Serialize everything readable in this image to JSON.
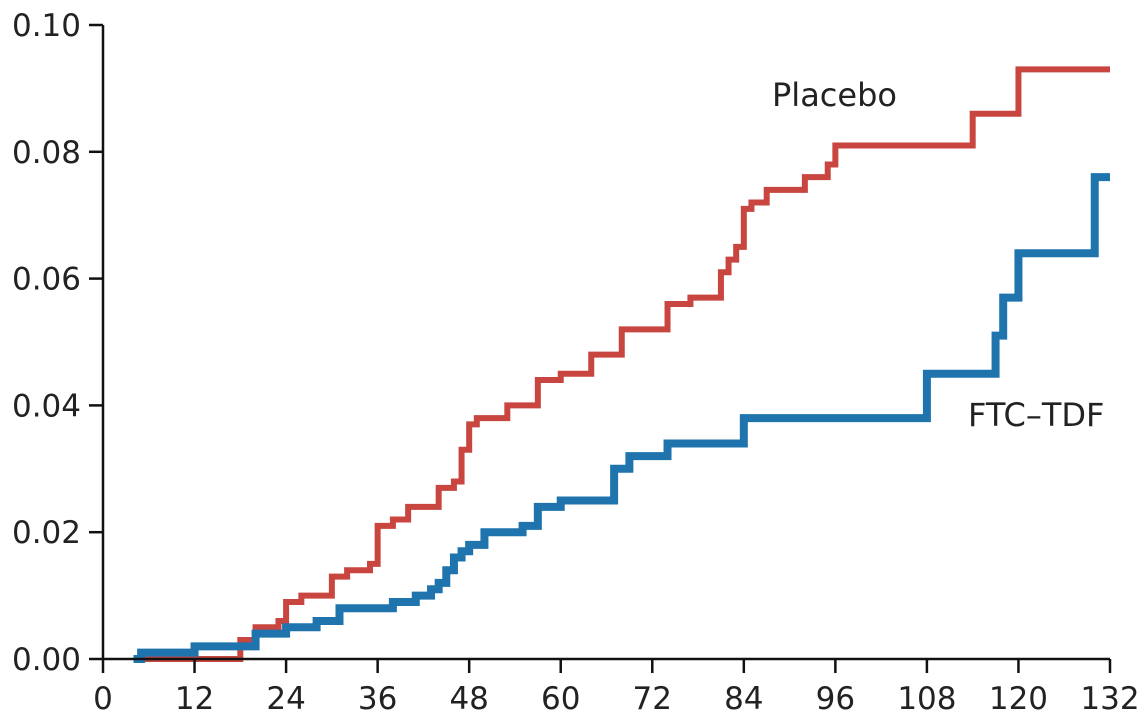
{
  "chart_data": {
    "type": "line",
    "title": "",
    "xlabel": "",
    "ylabel": "",
    "xlim": [
      0,
      132
    ],
    "ylim": [
      0,
      0.1
    ],
    "xticks": [
      0,
      12,
      24,
      36,
      48,
      60,
      72,
      84,
      96,
      108,
      120,
      132
    ],
    "yticks": [
      0.0,
      0.02,
      0.04,
      0.06,
      0.08,
      0.1
    ],
    "ytick_labels": [
      "0.00",
      "0.02",
      "0.04",
      "0.06",
      "0.08",
      "0.10"
    ],
    "grid": false,
    "line_style": "step",
    "series": [
      {
        "name": "Placebo",
        "color": "#c8463f",
        "x": [
          5,
          18,
          20,
          23,
          24,
          26,
          30,
          32,
          35,
          36,
          38,
          40,
          44,
          46,
          47,
          48,
          49,
          53,
          57,
          60,
          64,
          68,
          74,
          77,
          81,
          82,
          83,
          84,
          85,
          87,
          92,
          95,
          96,
          110,
          114,
          120,
          132
        ],
        "y": [
          0.0,
          0.003,
          0.005,
          0.006,
          0.009,
          0.01,
          0.013,
          0.014,
          0.015,
          0.021,
          0.022,
          0.024,
          0.027,
          0.028,
          0.033,
          0.037,
          0.038,
          0.04,
          0.044,
          0.045,
          0.048,
          0.052,
          0.056,
          0.057,
          0.061,
          0.063,
          0.065,
          0.071,
          0.072,
          0.074,
          0.076,
          0.078,
          0.081,
          0.081,
          0.086,
          0.093,
          0.093
        ]
      },
      {
        "name": "FTC–TDF",
        "color": "#1f74ad",
        "x": [
          4,
          5,
          12,
          20,
          24,
          28,
          31,
          35,
          38,
          41,
          43,
          44,
          45,
          46,
          47,
          48,
          50,
          55,
          57,
          60,
          67,
          69,
          74,
          80,
          84,
          98,
          108,
          117,
          118,
          120,
          130,
          132
        ],
        "y": [
          0.0,
          0.001,
          0.002,
          0.004,
          0.005,
          0.006,
          0.008,
          0.008,
          0.009,
          0.01,
          0.011,
          0.012,
          0.014,
          0.016,
          0.017,
          0.018,
          0.02,
          0.021,
          0.024,
          0.025,
          0.03,
          0.032,
          0.034,
          0.034,
          0.038,
          0.038,
          0.045,
          0.051,
          0.057,
          0.064,
          0.076,
          0.076
        ]
      }
    ]
  }
}
